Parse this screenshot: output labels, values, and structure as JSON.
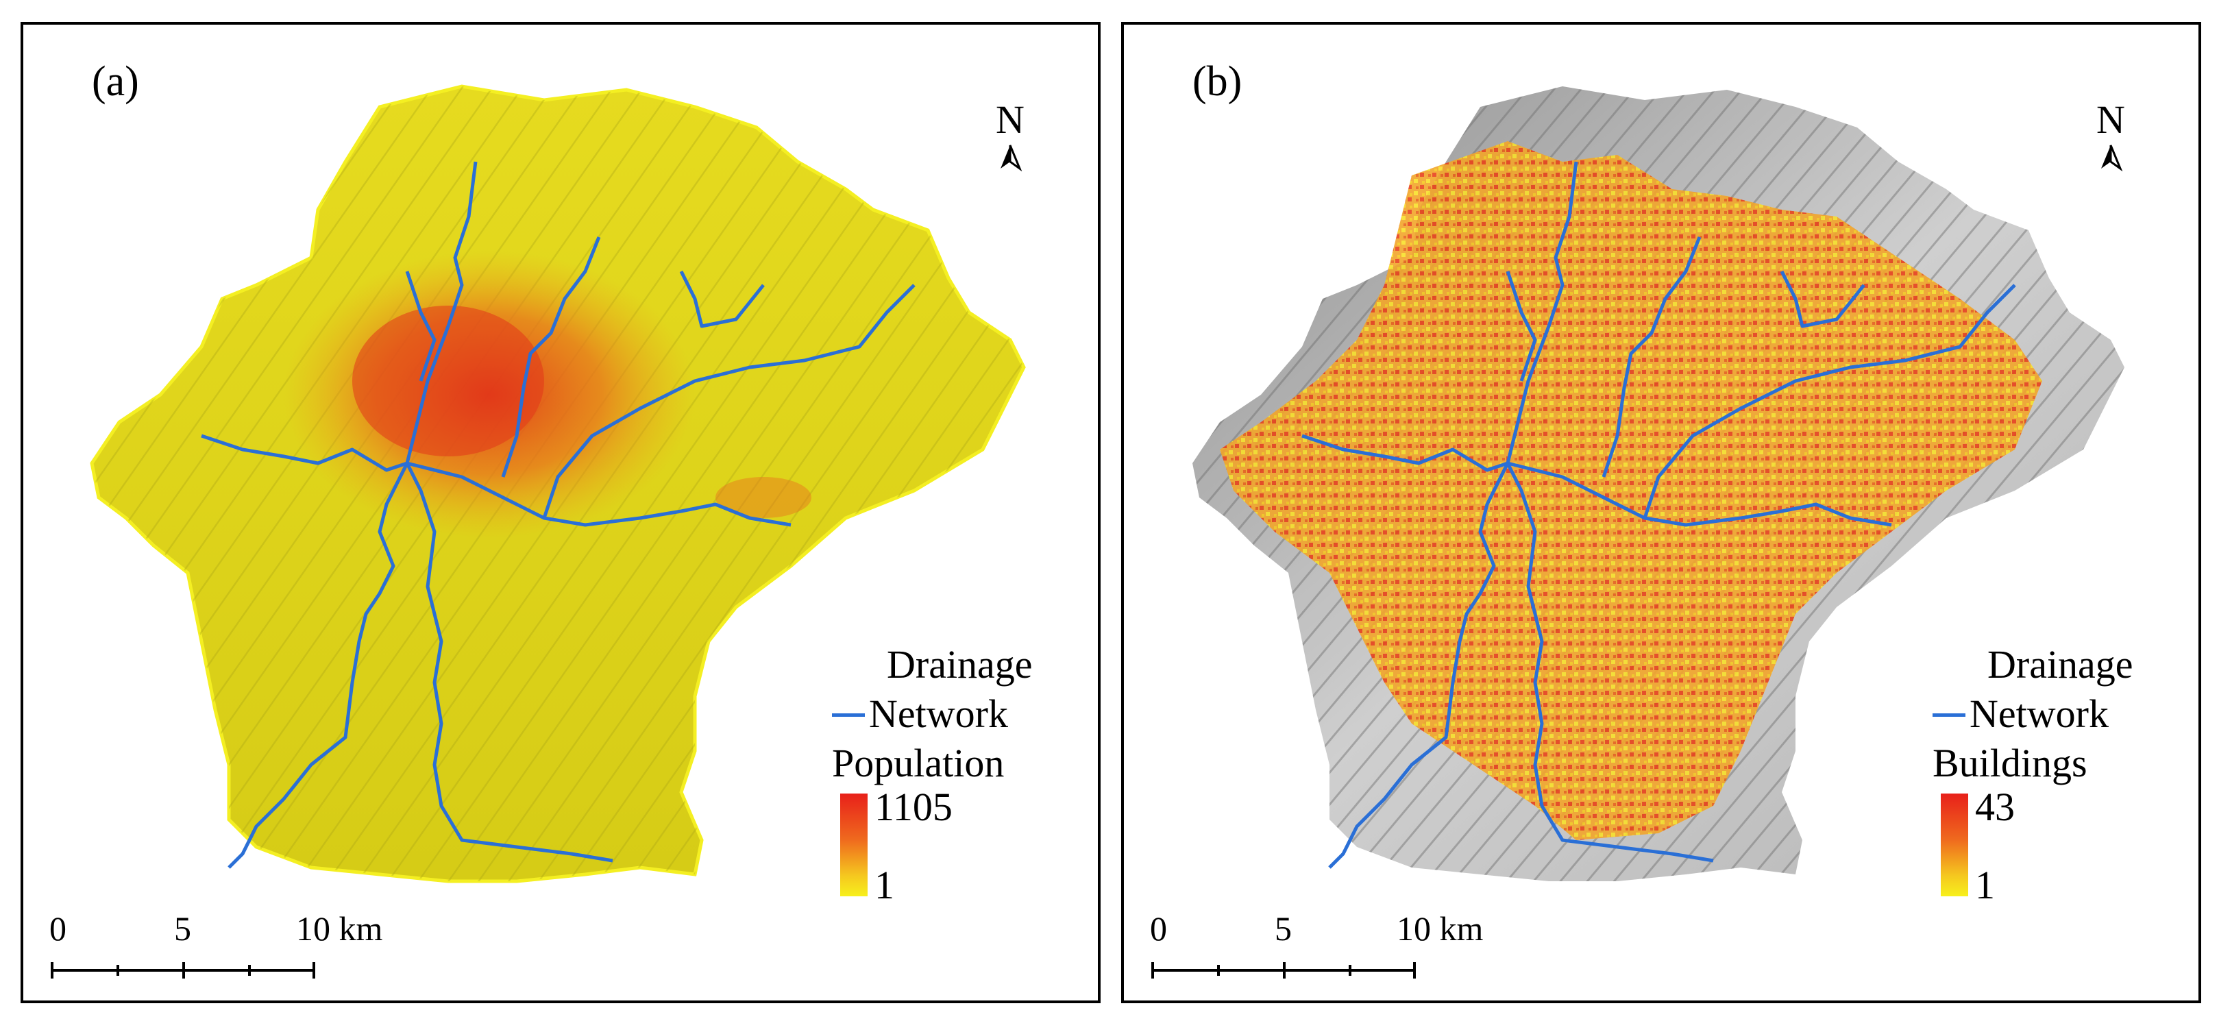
{
  "panels": [
    {
      "label": "(a)",
      "north": "N",
      "legend": {
        "line_title_1": "Drainage",
        "line_title_2": "Network",
        "line_color": "#2a6fd6",
        "ramp_title": "Population",
        "ramp_max": "1105",
        "ramp_min": "1",
        "ramp_colors": [
          "#e8201a",
          "#ef6a1e",
          "#f5c81f",
          "#f7f01c"
        ]
      },
      "scale": {
        "labels": [
          "0",
          "5",
          "10 km"
        ]
      }
    },
    {
      "label": "(b)",
      "north": "N",
      "legend": {
        "line_title_1": "Drainage",
        "line_title_2": "Network",
        "line_color": "#2a6fd6",
        "ramp_title": "Buildings",
        "ramp_max": "43",
        "ramp_min": "1",
        "ramp_colors": [
          "#e8201a",
          "#ef6a1e",
          "#f5c81f",
          "#f7f01c"
        ]
      },
      "scale": {
        "labels": [
          "0",
          "5",
          "10 km"
        ]
      }
    }
  ],
  "colors": {
    "population_base": "#d9d21a",
    "population_hot": "#e0421a",
    "hillshade": "#bdbdbd",
    "buildings": "#f08a2a",
    "river": "#2a6fd6"
  }
}
